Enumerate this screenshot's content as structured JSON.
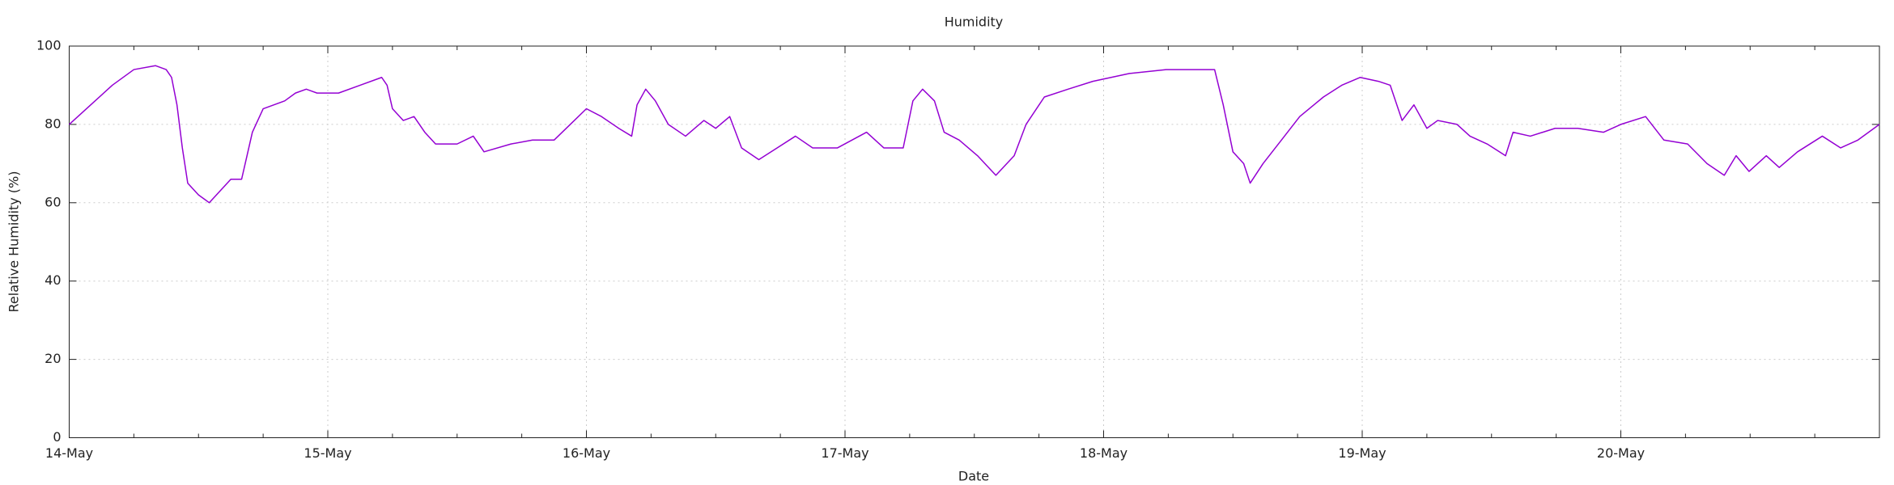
{
  "chart_data": {
    "type": "line",
    "title": "Humidity",
    "xlabel": "Date",
    "ylabel": "Relative Humidity (%)",
    "x": [
      0,
      2,
      4,
      6,
      8,
      9,
      9.5,
      10,
      10.5,
      11,
      12,
      13,
      14,
      15,
      16,
      16.5,
      17,
      18,
      19,
      20,
      21,
      22,
      23,
      24,
      25,
      27,
      29,
      29.5,
      30,
      31,
      32,
      33,
      34,
      36,
      37.5,
      38.5,
      41,
      43,
      45,
      46.5,
      48,
      49.4,
      51,
      52.2,
      52.7,
      53.5,
      54.4,
      55.6,
      57.2,
      58.9,
      60,
      61.3,
      62.4,
      64,
      65.7,
      67.4,
      69,
      71.3,
      74,
      75.6,
      77.4,
      78.3,
      79.2,
      80.3,
      81.2,
      82.6,
      84.3,
      86,
      87.7,
      88.8,
      90.5,
      92.7,
      95,
      98.4,
      101.8,
      106.3,
      107.1,
      108,
      109,
      109.6,
      110.8,
      112.5,
      114.2,
      116.4,
      118.1,
      119.8,
      121.5,
      122.6,
      123.7,
      124.8,
      126,
      127,
      128.8,
      130,
      131.6,
      133.3,
      134,
      135.6,
      137.9,
      140,
      142.4,
      144,
      146.3,
      148,
      150.2,
      152,
      153.6,
      154.7,
      155.9,
      157.5,
      158.7,
      160.4,
      162.7,
      164.4,
      166,
      168
    ],
    "values": [
      80,
      85,
      90,
      94,
      95,
      94,
      92,
      85,
      74,
      65,
      62,
      60,
      63,
      66,
      66,
      72,
      78,
      84,
      85,
      86,
      88,
      89,
      88,
      88,
      88,
      90,
      92,
      90,
      84,
      81,
      82,
      78,
      75,
      75,
      77,
      73,
      75,
      76,
      76,
      80,
      84,
      82,
      79,
      77,
      85,
      89,
      86,
      80,
      77,
      81,
      79,
      82,
      74,
      71,
      74,
      77,
      74,
      74,
      78,
      74,
      74,
      86,
      89,
      86,
      78,
      76,
      72,
      67,
      72,
      80,
      87,
      89,
      91,
      93,
      94,
      94,
      85,
      73,
      70,
      65,
      70,
      76,
      82,
      87,
      90,
      92,
      91,
      90,
      81,
      85,
      79,
      81,
      80,
      77,
      75,
      72,
      78,
      77,
      79,
      79,
      78,
      80,
      82,
      76,
      75,
      70,
      67,
      72,
      68,
      72,
      69,
      73,
      77,
      74,
      76,
      80
    ],
    "color": "#9400d3",
    "grid": true,
    "xlim": [
      0,
      168
    ],
    "xticks": [
      {
        "value": 0,
        "label": "14-May"
      },
      {
        "value": 24,
        "label": "15-May"
      },
      {
        "value": 48,
        "label": "16-May"
      },
      {
        "value": 72,
        "label": "17-May"
      },
      {
        "value": 96,
        "label": "18-May"
      },
      {
        "value": 120,
        "label": "19-May"
      },
      {
        "value": 144,
        "label": "20-May"
      }
    ],
    "ylim": [
      0,
      100
    ],
    "yticks": [
      0,
      20,
      40,
      60,
      80,
      100
    ]
  }
}
